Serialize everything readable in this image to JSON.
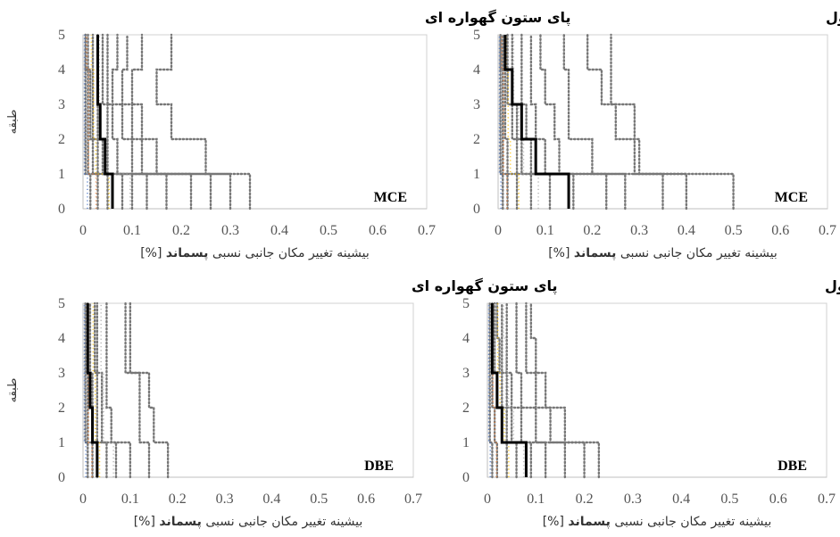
{
  "chart_data": [
    {
      "type": "line",
      "title": "پای ستون گهواره ای",
      "hazard_level": "MCE",
      "xlabel": {
        "prefix": "بیشینه  تغییر مکان جانبی نسبی ",
        "bold": "پسماند",
        "unit": "[%]"
      },
      "ylabel": "طبقه",
      "xlim": [
        0,
        0.7
      ],
      "ylim": [
        0,
        5
      ],
      "xticks": [
        "0",
        "0.1",
        "0.2",
        "0.3",
        "0.4",
        "0.5",
        "0.6",
        "0.7"
      ],
      "yticks": [
        "0",
        "1",
        "2",
        "3",
        "4",
        "5"
      ],
      "mean_profile": [
        0.06,
        0.045,
        0.035,
        0.03,
        0.03
      ],
      "records": [
        [
          0.34,
          0.25,
          0.18,
          0.15,
          0.18
        ],
        [
          0.3,
          0.15,
          0.12,
          0.1,
          0.12
        ],
        [
          0.26,
          0.12,
          0.1,
          0.08,
          0.09
        ],
        [
          0.22,
          0.1,
          0.08,
          0.06,
          0.07
        ],
        [
          0.17,
          0.07,
          0.06,
          0.05,
          0.05
        ],
        [
          0.13,
          0.05,
          0.05,
          0.04,
          0.04
        ],
        [
          0.1,
          0.04,
          0.03,
          0.03,
          0.03
        ],
        [
          0.08,
          0.03,
          0.02,
          0.02,
          0.02
        ],
        [
          0.05,
          0.02,
          0.015,
          0.015,
          0.01
        ],
        [
          0.03,
          0.01,
          0.01,
          0.01,
          0.005
        ],
        [
          0.015,
          0.005,
          0.005,
          0.005,
          0.005
        ]
      ]
    },
    {
      "type": "line",
      "title": "پای ستون متداول",
      "hazard_level": "MCE",
      "xlabel": {
        "prefix": "بیشینه  تغییر مکان جانبی نسبی ",
        "bold": "پسماند",
        "unit": "[%]"
      },
      "ylabel": "",
      "xlim": [
        0,
        0.7
      ],
      "ylim": [
        0,
        5
      ],
      "xticks": [
        "0",
        "0.1",
        "0.2",
        "0.3",
        "0.4",
        "0.5",
        "0.6",
        "0.7"
      ],
      "yticks": [
        "0",
        "1",
        "2",
        "3",
        "4",
        "5"
      ],
      "mean_profile": [
        0.15,
        0.08,
        0.05,
        0.03,
        0.015
      ],
      "records": [
        [
          0.5,
          0.3,
          0.29,
          0.24,
          0.24
        ],
        [
          0.4,
          0.29,
          0.25,
          0.22,
          0.19
        ],
        [
          0.35,
          0.2,
          0.15,
          0.15,
          0.14
        ],
        [
          0.27,
          0.13,
          0.12,
          0.1,
          0.09
        ],
        [
          0.23,
          0.1,
          0.08,
          0.07,
          0.07
        ],
        [
          0.16,
          0.07,
          0.06,
          0.05,
          0.05
        ],
        [
          0.11,
          0.05,
          0.04,
          0.03,
          0.03
        ],
        [
          0.07,
          0.04,
          0.03,
          0.02,
          0.02
        ],
        [
          0.04,
          0.02,
          0.015,
          0.015,
          0.01
        ],
        [
          0.02,
          0.01,
          0.01,
          0.01,
          0.005
        ],
        [
          0.01,
          0.005,
          0.005,
          0.005,
          0.005
        ]
      ]
    },
    {
      "type": "line",
      "title": "پای ستون گهواره ای",
      "hazard_level": "DBE",
      "xlabel": {
        "prefix": "بیشینه  تغییر مکان جانبی نسبی ",
        "bold": "پسماند",
        "unit": "[%]"
      },
      "ylabel": "طبقه",
      "xlim": [
        0,
        0.7
      ],
      "ylim": [
        0,
        5
      ],
      "xticks": [
        "0",
        "0.1",
        "0.2",
        "0.3",
        "0.4",
        "0.5",
        "0.6",
        "0.7"
      ],
      "yticks": [
        "0",
        "1",
        "2",
        "3",
        "4",
        "5"
      ],
      "mean_profile": [
        0.03,
        0.02,
        0.015,
        0.01,
        0.01
      ],
      "records": [
        [
          0.18,
          0.15,
          0.14,
          0.1,
          0.1
        ],
        [
          0.14,
          0.12,
          0.12,
          0.09,
          0.09
        ],
        [
          0.1,
          0.06,
          0.05,
          0.05,
          0.05
        ],
        [
          0.07,
          0.04,
          0.04,
          0.03,
          0.03
        ],
        [
          0.05,
          0.03,
          0.03,
          0.025,
          0.025
        ],
        [
          0.03,
          0.02,
          0.02,
          0.015,
          0.015
        ],
        [
          0.02,
          0.01,
          0.01,
          0.01,
          0.01
        ],
        [
          0.01,
          0.005,
          0.005,
          0.005,
          0.005
        ]
      ]
    },
    {
      "type": "line",
      "title": "پای ستون متداول",
      "hazard_level": "DBE",
      "xlabel": {
        "prefix": "بیشینه  تغییر مکان جانبی نسبی ",
        "bold": "پسماند",
        "unit": "[%]"
      },
      "ylabel": "",
      "xlim": [
        0,
        0.7
      ],
      "ylim": [
        0,
        5
      ],
      "xticks": [
        "0",
        "0.1",
        "0.2",
        "0.3",
        "0.4",
        "0.5",
        "0.6",
        "0.7"
      ],
      "yticks": [
        "0",
        "1",
        "2",
        "3",
        "4",
        "5"
      ],
      "mean_profile": [
        0.08,
        0.03,
        0.02,
        0.01,
        0.01
      ],
      "records": [
        [
          0.23,
          0.16,
          0.12,
          0.1,
          0.09
        ],
        [
          0.2,
          0.13,
          0.1,
          0.08,
          0.08
        ],
        [
          0.16,
          0.1,
          0.07,
          0.06,
          0.06
        ],
        [
          0.12,
          0.07,
          0.05,
          0.04,
          0.04
        ],
        [
          0.09,
          0.05,
          0.04,
          0.03,
          0.03
        ],
        [
          0.06,
          0.04,
          0.03,
          0.025,
          0.02
        ],
        [
          0.04,
          0.03,
          0.02,
          0.015,
          0.015
        ],
        [
          0.02,
          0.015,
          0.01,
          0.01,
          0.01
        ],
        [
          0.01,
          0.005,
          0.005,
          0.005,
          0.005
        ]
      ]
    }
  ],
  "colors": {
    "record_lines": "#777777",
    "mean_line": "#000000",
    "axis": "#bfbfbf",
    "plot_border": "#d0d0d0",
    "record_accents": [
      "#4472c4",
      "#ed7d31",
      "#ffc000",
      "#a5a5a5"
    ]
  }
}
